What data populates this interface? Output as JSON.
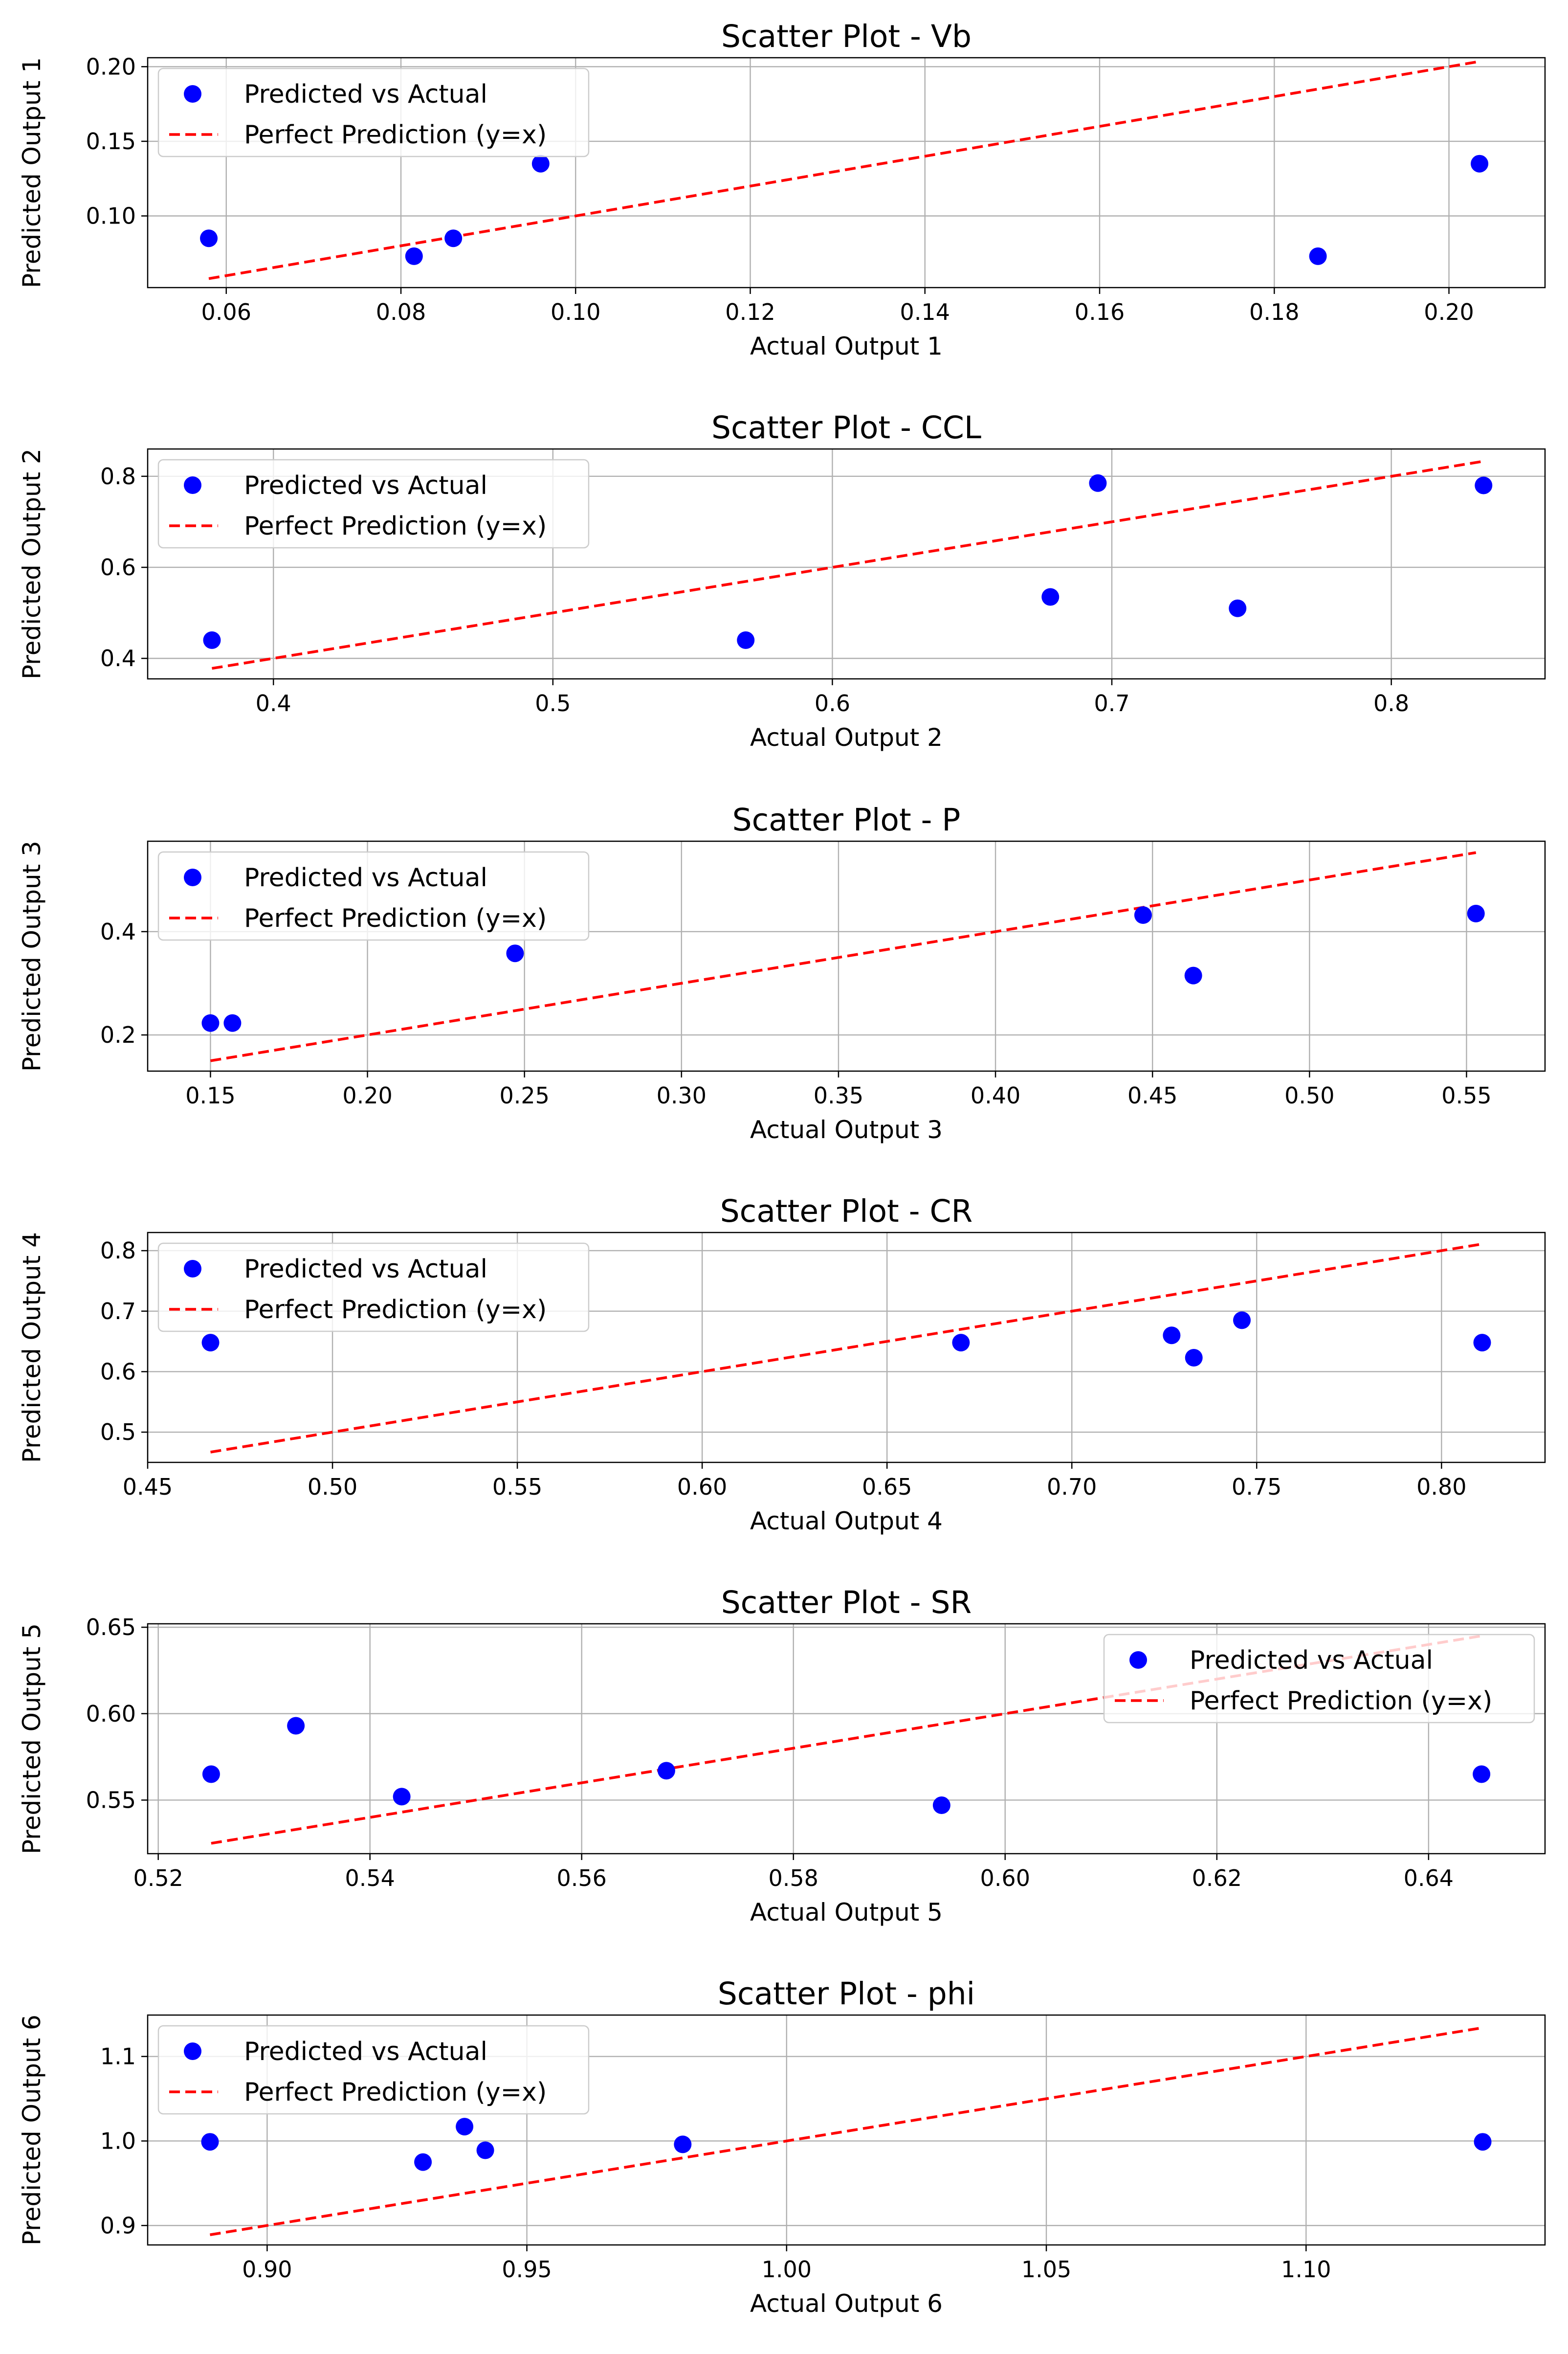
{
  "chart_data": [
    {
      "type": "scatter",
      "title": "Scatter Plot - Vb",
      "xlabel": "Actual Output 1",
      "ylabel": "Predicted Output 1",
      "xlim": [
        0.051,
        0.211
      ],
      "ylim": [
        0.052,
        0.206
      ],
      "xticks": [
        0.06,
        0.08,
        0.1,
        0.12,
        0.14,
        0.16,
        0.18,
        0.2
      ],
      "xtick_labels": [
        "0.06",
        "0.08",
        "0.10",
        "0.12",
        "0.14",
        "0.16",
        "0.18",
        "0.20"
      ],
      "yticks": [
        0.1,
        0.15,
        0.2
      ],
      "ytick_labels": [
        "0.10",
        "0.15",
        "0.20"
      ],
      "grid": true,
      "legend_position": "upper-left",
      "series": [
        {
          "name": "Predicted vs Actual",
          "kind": "scatter",
          "color": "#0000ff",
          "x": [
            0.058,
            0.0815,
            0.086,
            0.096,
            0.185,
            0.2035
          ],
          "y": [
            0.085,
            0.073,
            0.085,
            0.135,
            0.073,
            0.135
          ]
        },
        {
          "name": "Perfect Prediction (y=x)",
          "kind": "line",
          "color": "#ff0000",
          "x": [
            0.058,
            0.2035
          ],
          "y": [
            0.058,
            0.2035
          ]
        }
      ]
    },
    {
      "type": "scatter",
      "title": "Scatter Plot - CCL",
      "xlabel": "Actual Output 2",
      "ylabel": "Predicted Output 2",
      "xlim": [
        0.355,
        0.855
      ],
      "ylim": [
        0.355,
        0.86
      ],
      "xticks": [
        0.4,
        0.5,
        0.6,
        0.7,
        0.8
      ],
      "xtick_labels": [
        "0.4",
        "0.5",
        "0.6",
        "0.7",
        "0.8"
      ],
      "yticks": [
        0.4,
        0.6,
        0.8
      ],
      "ytick_labels": [
        "0.4",
        "0.6",
        "0.8"
      ],
      "grid": true,
      "legend_position": "upper-left",
      "series": [
        {
          "name": "Predicted vs Actual",
          "kind": "scatter",
          "color": "#0000ff",
          "x": [
            0.378,
            0.569,
            0.678,
            0.695,
            0.745,
            0.833
          ],
          "y": [
            0.44,
            0.44,
            0.535,
            0.785,
            0.51,
            0.78
          ]
        },
        {
          "name": "Perfect Prediction (y=x)",
          "kind": "line",
          "color": "#ff0000",
          "x": [
            0.378,
            0.833
          ],
          "y": [
            0.378,
            0.833
          ]
        }
      ]
    },
    {
      "type": "scatter",
      "title": "Scatter Plot - P",
      "xlabel": "Actual Output 3",
      "ylabel": "Predicted Output 3",
      "xlim": [
        0.13,
        0.575
      ],
      "ylim": [
        0.13,
        0.575
      ],
      "xticks": [
        0.15,
        0.2,
        0.25,
        0.3,
        0.35,
        0.4,
        0.45,
        0.5,
        0.55
      ],
      "xtick_labels": [
        "0.15",
        "0.20",
        "0.25",
        "0.30",
        "0.35",
        "0.40",
        "0.45",
        "0.50",
        "0.55"
      ],
      "yticks": [
        0.2,
        0.4
      ],
      "ytick_labels": [
        "0.2",
        "0.4"
      ],
      "grid": true,
      "legend_position": "upper-left",
      "series": [
        {
          "name": "Predicted vs Actual",
          "kind": "scatter",
          "color": "#0000ff",
          "x": [
            0.15,
            0.157,
            0.247,
            0.447,
            0.463,
            0.553
          ],
          "y": [
            0.223,
            0.223,
            0.358,
            0.432,
            0.315,
            0.435
          ]
        },
        {
          "name": "Perfect Prediction (y=x)",
          "kind": "line",
          "color": "#ff0000",
          "x": [
            0.15,
            0.553
          ],
          "y": [
            0.15,
            0.553
          ]
        }
      ]
    },
    {
      "type": "scatter",
      "title": "Scatter Plot - CR",
      "xlabel": "Actual Output 4",
      "ylabel": "Predicted Output 4",
      "xlim": [
        0.45,
        0.828
      ],
      "ylim": [
        0.45,
        0.83
      ],
      "xticks": [
        0.45,
        0.5,
        0.55,
        0.6,
        0.65,
        0.7,
        0.75,
        0.8
      ],
      "xtick_labels": [
        "0.45",
        "0.50",
        "0.55",
        "0.60",
        "0.65",
        "0.70",
        "0.75",
        "0.80"
      ],
      "yticks": [
        0.5,
        0.6,
        0.7,
        0.8
      ],
      "ytick_labels": [
        "0.5",
        "0.6",
        "0.7",
        "0.8"
      ],
      "grid": true,
      "legend_position": "upper-left",
      "series": [
        {
          "name": "Predicted vs Actual",
          "kind": "scatter",
          "color": "#0000ff",
          "x": [
            0.467,
            0.67,
            0.727,
            0.733,
            0.746,
            0.811
          ],
          "y": [
            0.648,
            0.648,
            0.66,
            0.623,
            0.685,
            0.648
          ]
        },
        {
          "name": "Perfect Prediction (y=x)",
          "kind": "line",
          "color": "#ff0000",
          "x": [
            0.467,
            0.811
          ],
          "y": [
            0.467,
            0.811
          ]
        }
      ]
    },
    {
      "type": "scatter",
      "title": "Scatter Plot - SR",
      "xlabel": "Actual Output 5",
      "ylabel": "Predicted Output 5",
      "xlim": [
        0.519,
        0.651
      ],
      "ylim": [
        0.519,
        0.652
      ],
      "xticks": [
        0.52,
        0.54,
        0.56,
        0.58,
        0.6,
        0.62,
        0.64
      ],
      "xtick_labels": [
        "0.52",
        "0.54",
        "0.56",
        "0.58",
        "0.60",
        "0.62",
        "0.64"
      ],
      "yticks": [
        0.55,
        0.6,
        0.65
      ],
      "ytick_labels": [
        "0.55",
        "0.60",
        "0.65"
      ],
      "grid": true,
      "legend_position": "upper-right",
      "series": [
        {
          "name": "Predicted vs Actual",
          "kind": "scatter",
          "color": "#0000ff",
          "x": [
            0.525,
            0.533,
            0.543,
            0.568,
            0.594,
            0.645
          ],
          "y": [
            0.565,
            0.593,
            0.552,
            0.567,
            0.547,
            0.565
          ]
        },
        {
          "name": "Perfect Prediction (y=x)",
          "kind": "line",
          "color": "#ff0000",
          "x": [
            0.525,
            0.645
          ],
          "y": [
            0.525,
            0.645
          ]
        }
      ]
    },
    {
      "type": "scatter",
      "title": "Scatter Plot - phi",
      "xlabel": "Actual Output 6",
      "ylabel": "Predicted Output 6",
      "xlim": [
        0.877,
        1.146
      ],
      "ylim": [
        0.877,
        1.149
      ],
      "xticks": [
        0.9,
        0.95,
        1.0,
        1.05,
        1.1
      ],
      "xtick_labels": [
        "0.90",
        "0.95",
        "1.00",
        "1.05",
        "1.10"
      ],
      "yticks": [
        0.9,
        1.0,
        1.1
      ],
      "ytick_labels": [
        "0.9",
        "1.0",
        "1.1"
      ],
      "grid": true,
      "legend_position": "upper-left",
      "series": [
        {
          "name": "Predicted vs Actual",
          "kind": "scatter",
          "color": "#0000ff",
          "x": [
            0.889,
            0.93,
            0.938,
            0.942,
            0.98,
            1.134
          ],
          "y": [
            0.999,
            0.975,
            1.017,
            0.989,
            0.996,
            0.999
          ]
        },
        {
          "name": "Perfect Prediction (y=x)",
          "kind": "line",
          "color": "#ff0000",
          "x": [
            0.889,
            1.134
          ],
          "y": [
            0.889,
            1.134
          ]
        }
      ]
    }
  ]
}
